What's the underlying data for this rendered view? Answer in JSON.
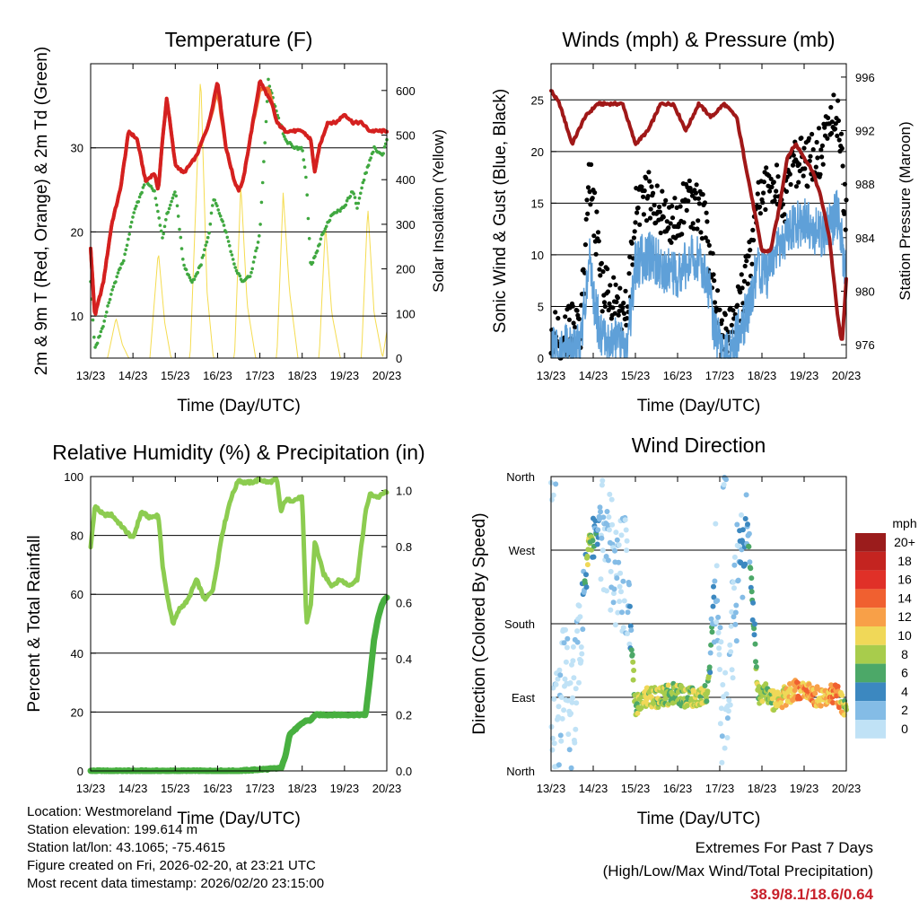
{
  "x_ticks": [
    "13/23",
    "14/23",
    "15/23",
    "16/23",
    "17/23",
    "18/23",
    "19/23",
    "20/23"
  ],
  "x_label": "Time (Day/UTC)",
  "colors": {
    "temp2m": "#d42020",
    "temp9m": "#f07030",
    "dewpoint": "#40a840",
    "insolation": "#f5dc50",
    "wind": "#5fa0d8",
    "gust": "#000000",
    "pressure": "#a01818",
    "rh": "#8ccc50",
    "precip": "#48b040"
  },
  "chart_data": [
    {
      "id": "temperature",
      "type": "line",
      "title": "Temperature (F)",
      "xlabel": "Time (Day/UTC)",
      "ylabel": "2m & 9m T (Red, Orange) & 2m Td (Green)",
      "ylabel_right": "Solar Insolation (Yellow)",
      "xlim": [
        0,
        7
      ],
      "ylim": [
        5,
        40
      ],
      "yticks": [
        10,
        20,
        30
      ],
      "ylim_right": [
        0,
        660
      ],
      "yticks_right": [
        0,
        100,
        200,
        300,
        400,
        500,
        600
      ],
      "series": [
        {
          "name": "2m T",
          "color_key": "temp2m",
          "x": [
            0,
            0.1,
            0.3,
            0.5,
            0.7,
            0.9,
            1.1,
            1.3,
            1.5,
            1.6,
            1.7,
            1.8,
            2.0,
            2.2,
            2.5,
            2.8,
            3.0,
            3.2,
            3.4,
            3.5,
            3.6,
            3.8,
            4.0,
            4.2,
            4.3,
            4.4,
            4.6,
            4.8,
            5.0,
            5.2,
            5.3,
            5.4,
            5.6,
            5.8,
            6.0,
            6.2,
            6.4,
            6.6,
            6.8,
            7.0
          ],
          "values": [
            18,
            10,
            14,
            21,
            25,
            32,
            31,
            26,
            27,
            25,
            31,
            36,
            28,
            27,
            29,
            33,
            38,
            30,
            26,
            25,
            26,
            32,
            38,
            36,
            35,
            33,
            32,
            32,
            32,
            31,
            27,
            30,
            33,
            33,
            34,
            33,
            33,
            32,
            32,
            32
          ]
        },
        {
          "name": "9m T",
          "color_key": "temp9m",
          "x": [
            0,
            0.1,
            0.3,
            0.5,
            0.7,
            0.9,
            1.1,
            1.3,
            1.5,
            1.6,
            1.7,
            1.8,
            2.0,
            2.2,
            2.5,
            2.8,
            3.0,
            3.2,
            3.4,
            3.5,
            3.6,
            3.8,
            4.0,
            4.2,
            4.3,
            4.4,
            4.6,
            4.8,
            5.0,
            5.2,
            5.3,
            5.4,
            5.6,
            5.8,
            6.0,
            6.2,
            6.4,
            6.6,
            6.8,
            7.0
          ],
          "values": [
            18,
            10,
            14,
            21,
            25,
            32,
            31,
            26,
            27,
            25,
            31,
            36,
            28,
            27,
            29,
            33,
            37,
            30,
            26,
            25,
            26,
            32,
            37,
            37,
            35,
            33,
            32,
            32,
            32,
            31,
            27,
            30,
            33,
            33,
            34,
            33,
            33,
            32,
            32,
            32
          ]
        },
        {
          "name": "2m Td",
          "color_key": "dewpoint",
          "x": [
            0,
            0.1,
            0.3,
            0.5,
            0.8,
            1.0,
            1.3,
            1.5,
            1.7,
            1.8,
            2.0,
            2.2,
            2.4,
            2.6,
            2.8,
            2.9,
            3.0,
            3.2,
            3.4,
            3.6,
            3.8,
            4.0,
            4.2,
            4.4,
            4.6,
            4.8,
            5.0,
            5.1,
            5.2,
            5.3,
            5.5,
            5.7,
            6.0,
            6.2,
            6.3,
            6.5,
            6.7,
            6.9,
            7.0
          ],
          "values": [
            14,
            6,
            9,
            13,
            17,
            22,
            26,
            25,
            19,
            22,
            25,
            16,
            14,
            16,
            20,
            24,
            23,
            20,
            16,
            14,
            15,
            20,
            38,
            34,
            31,
            30,
            30,
            26,
            16,
            17,
            20,
            22,
            23,
            25,
            23,
            27,
            30,
            29,
            31
          ]
        },
        {
          "name": "Solar Insolation",
          "color_key": "insolation",
          "axis": "right",
          "x": [
            0.4,
            0.6,
            0.75,
            0.9,
            1.4,
            1.6,
            1.75,
            1.9,
            2.35,
            2.5,
            2.6,
            2.75,
            2.9,
            3.4,
            3.55,
            3.7,
            3.9,
            4.4,
            4.55,
            4.7,
            4.9,
            5.4,
            5.55,
            5.7,
            5.9,
            6.4,
            6.55,
            6.7,
            6.9,
            7.0
          ],
          "values": [
            0,
            90,
            30,
            0,
            0,
            240,
            80,
            0,
            0,
            380,
            640,
            150,
            0,
            0,
            390,
            120,
            0,
            0,
            370,
            150,
            0,
            0,
            300,
            100,
            0,
            0,
            340,
            100,
            0,
            60
          ]
        }
      ]
    },
    {
      "id": "winds",
      "type": "scatter",
      "title": "Winds (mph) & Pressure (mb)",
      "xlabel": "Time (Day/UTC)",
      "ylabel": "Sonic Wind & Gust (Blue, Black)",
      "ylabel_right": "Station Pressure (Maroon)",
      "xlim": [
        0,
        7
      ],
      "ylim": [
        0,
        28.5
      ],
      "yticks": [
        0,
        5,
        10,
        15,
        20,
        25
      ],
      "ylim_right": [
        975,
        997
      ],
      "yticks_right": [
        976,
        980,
        984,
        988,
        992,
        996
      ],
      "series": [
        {
          "name": "Sonic Wind",
          "color_key": "wind",
          "x": [
            0,
            0.3,
            0.5,
            0.7,
            0.9,
            1.0,
            1.2,
            1.5,
            1.8,
            2.0,
            2.3,
            2.6,
            2.9,
            3.2,
            3.5,
            3.7,
            3.9,
            4.1,
            4.3,
            4.5,
            4.7,
            4.9,
            5.1,
            5.3,
            5.5,
            5.8,
            6.1,
            6.4,
            6.6,
            6.8,
            7.0
          ],
          "values": [
            0.5,
            1,
            0.5,
            1,
            10,
            6,
            2,
            2,
            1,
            9,
            10,
            9,
            8,
            9,
            10,
            8,
            2,
            0.5,
            1,
            3,
            5,
            9,
            8,
            10,
            11,
            13,
            13,
            12,
            13,
            14,
            8
          ]
        },
        {
          "name": "Gust",
          "color_key": "gust",
          "x": [
            0,
            0.3,
            0.5,
            0.7,
            0.9,
            1.0,
            1.2,
            1.5,
            1.8,
            2.0,
            2.3,
            2.6,
            2.9,
            3.2,
            3.5,
            3.7,
            3.9,
            4.1,
            4.3,
            4.5,
            4.7,
            4.9,
            5.1,
            5.3,
            5.5,
            5.8,
            6.1,
            6.4,
            6.6,
            6.8,
            7.0
          ],
          "values": [
            2,
            2,
            3,
            2,
            18,
            15,
            7,
            6,
            4,
            14,
            16,
            14,
            13,
            15,
            15,
            12,
            6,
            2,
            3,
            6,
            9,
            15,
            17,
            17,
            15,
            19,
            19,
            20,
            22,
            24,
            13
          ]
        },
        {
          "name": "Station Pressure",
          "color_key": "pressure",
          "axis": "right",
          "x": [
            0,
            0.2,
            0.5,
            0.8,
            1.1,
            1.4,
            1.7,
            2.0,
            2.3,
            2.6,
            2.9,
            3.2,
            3.5,
            3.8,
            4.1,
            4.4,
            4.7,
            5.0,
            5.2,
            5.4,
            5.6,
            5.8,
            6.0,
            6.2,
            6.4,
            6.6,
            6.8,
            6.9,
            7.0
          ],
          "values": [
            995,
            994,
            991,
            993,
            994,
            994,
            994,
            991,
            992,
            994,
            994,
            992,
            994,
            993,
            994,
            993,
            988,
            983,
            983,
            986,
            990,
            991,
            990,
            989,
            987,
            984,
            978,
            976,
            981
          ]
        }
      ]
    },
    {
      "id": "humidity",
      "type": "line",
      "title": "Relative Humidity (%) & Precipitation (in)",
      "xlabel": "Time (Day/UTC)",
      "ylabel": "Percent & Total Rainfall",
      "xlim": [
        0,
        7
      ],
      "ylim": [
        0,
        100
      ],
      "yticks": [
        0,
        20,
        40,
        60,
        80,
        100
      ],
      "ylim_right": [
        0,
        1.05
      ],
      "yticks_right": [
        "0.0",
        "0.2",
        "0.4",
        "0.6",
        "0.8",
        "1.0"
      ],
      "series": [
        {
          "name": "Relative Humidity",
          "color_key": "rh",
          "x": [
            0,
            0.1,
            0.3,
            0.5,
            0.8,
            1.0,
            1.2,
            1.4,
            1.6,
            1.7,
            1.8,
            1.95,
            2.1,
            2.3,
            2.5,
            2.7,
            2.9,
            3.1,
            3.3,
            3.5,
            3.6,
            3.8,
            4.0,
            4.2,
            4.4,
            4.5,
            4.6,
            4.8,
            5.0,
            5.1,
            5.2,
            5.3,
            5.5,
            5.7,
            5.9,
            6.1,
            6.3,
            6.5,
            6.6,
            6.8,
            7.0
          ],
          "values": [
            76,
            90,
            87,
            87,
            82,
            79,
            88,
            86,
            87,
            70,
            60,
            50,
            55,
            58,
            65,
            58,
            62,
            80,
            92,
            99,
            98,
            98,
            99,
            98,
            99,
            88,
            92,
            92,
            93,
            50,
            56,
            78,
            67,
            63,
            65,
            63,
            65,
            88,
            94,
            93,
            95
          ]
        },
        {
          "name": "Total Precipitation",
          "color_key": "precip",
          "axis": "right",
          "x": [
            0,
            3.5,
            4.5,
            4.6,
            4.7,
            5.0,
            5.1,
            5.2,
            5.3,
            6.5,
            6.6,
            6.7,
            6.8,
            6.9,
            7.0
          ],
          "values": [
            0,
            0,
            0.01,
            0.05,
            0.13,
            0.17,
            0.18,
            0.18,
            0.2,
            0.2,
            0.33,
            0.47,
            0.55,
            0.6,
            0.62
          ]
        }
      ]
    },
    {
      "id": "wind_direction",
      "type": "scatter",
      "title": "Wind Direction",
      "xlabel": "Time (Day/UTC)",
      "ylabel": "Direction (Colored By Speed)",
      "xlim": [
        0,
        7
      ],
      "ylim": [
        0,
        360
      ],
      "yticks": [
        "North",
        "East",
        "South",
        "West",
        "North"
      ],
      "colorbar": {
        "title": "mph",
        "labels": [
          "20+",
          "18",
          "16",
          "14",
          "12",
          "10",
          "8",
          "6",
          "4",
          "2",
          "0"
        ],
        "colors": [
          "#9b1c1c",
          "#c42420",
          "#e03028",
          "#f06030",
          "#f8a048",
          "#f0d858",
          "#a8cc4c",
          "#4ca868",
          "#3c88c0",
          "#84bce6",
          "#c0e2f6"
        ]
      },
      "series": [
        {
          "name": "Direction",
          "x": [
            0.1,
            0.3,
            0.5,
            0.7,
            0.9,
            1.0,
            1.2,
            1.5,
            1.8,
            2.0,
            2.3,
            2.6,
            2.9,
            3.2,
            3.5,
            3.7,
            3.9,
            4.1,
            4.3,
            4.5,
            4.7,
            4.9,
            5.1,
            5.3,
            5.5,
            5.8,
            6.1,
            6.4,
            6.6,
            6.8,
            7.0
          ],
          "values": [
            40,
            110,
            70,
            200,
            275,
            285,
            290,
            250,
            240,
            80,
            90,
            90,
            95,
            90,
            90,
            95,
            240,
            30,
            180,
            280,
            280,
            90,
            95,
            85,
            90,
            100,
            95,
            90,
            95,
            92,
            70
          ],
          "speeds": [
            0.5,
            1,
            1,
            1,
            10,
            6,
            2,
            2,
            1,
            9,
            10,
            9,
            8,
            9,
            10,
            8,
            2,
            0.5,
            1,
            3,
            5,
            9,
            8,
            10,
            11,
            13,
            13,
            12,
            13,
            14,
            8
          ]
        }
      ]
    }
  ],
  "footer": {
    "location": "Location: Westmoreland",
    "elevation": "Station elevation: 199.614 m",
    "latlon": "Station lat/lon: 43.1065; -75.4615",
    "created": "Figure created on Fri, 2026-02-20, at 23:21 UTC",
    "recent": "Most recent data timestamp: 2026/02/20 23:15:00"
  },
  "extremes": {
    "title": "Extremes For Past 7 Days",
    "subtitle": "(High/Low/Max Wind/Total Precipitation)",
    "values": "38.9/8.1/18.6/0.64"
  }
}
